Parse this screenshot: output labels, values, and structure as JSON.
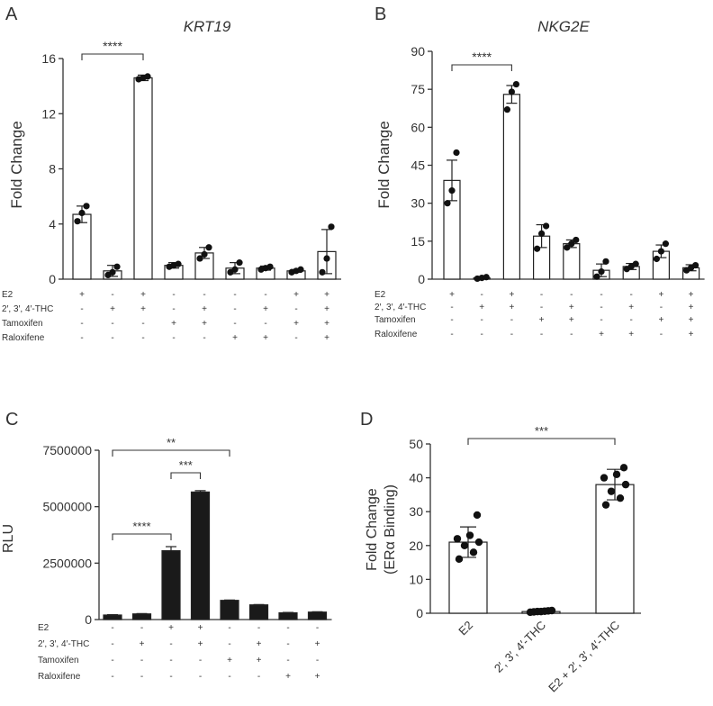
{
  "panels": {
    "A": {
      "letter": "A",
      "title": "KRT19"
    },
    "B": {
      "letter": "B",
      "title": "NKG2E"
    },
    "C": {
      "letter": "C"
    },
    "D": {
      "letter": "D"
    }
  },
  "conditions": {
    "labels": [
      "E2",
      "2′, 3′, 4′-THC",
      "Tamoxifen",
      "Raloxifene"
    ],
    "signs": [
      [
        "+",
        "-",
        "+",
        "-",
        "-",
        "-",
        "-",
        "+",
        "+"
      ],
      [
        "-",
        "+",
        "+",
        "-",
        "+",
        "-",
        "+",
        "-",
        "+"
      ],
      [
        "-",
        "-",
        "-",
        "+",
        "+",
        "-",
        "-",
        "+",
        "+"
      ],
      [
        "-",
        "-",
        "-",
        "-",
        "-",
        "+",
        "+",
        "-",
        "+"
      ]
    ]
  },
  "conditions_C": {
    "labels": [
      "E2",
      "2′, 3′, 4′-THC",
      "Tamoxifen",
      "Raloxifene"
    ],
    "signs": [
      [
        "-",
        "-",
        "+",
        "+",
        "-",
        "-",
        "-",
        "-"
      ],
      [
        "-",
        "+",
        "-",
        "+",
        "-",
        "+",
        "-",
        "+"
      ],
      [
        "-",
        "-",
        "-",
        "-",
        "+",
        "+",
        "-",
        "-"
      ],
      [
        "-",
        "-",
        "-",
        "-",
        "-",
        "-",
        "+",
        "+"
      ]
    ]
  },
  "chart_data": [
    {
      "panel": "A",
      "type": "bar",
      "title": "KRT19",
      "ylabel": "Fold Change",
      "ylim": [
        0,
        16
      ],
      "yticks": [
        "0",
        "4",
        "8",
        "12",
        "16"
      ],
      "values": [
        4.7,
        0.6,
        14.6,
        1.0,
        1.9,
        0.8,
        0.8,
        0.6,
        2.0
      ],
      "errors": [
        0.6,
        0.4,
        0.2,
        0.2,
        0.4,
        0.4,
        0.15,
        0.1,
        1.6
      ],
      "points": [
        [
          4.2,
          4.8,
          5.3
        ],
        [
          0.3,
          0.5,
          0.9
        ],
        [
          14.5,
          14.6,
          14.7
        ],
        [
          0.9,
          1.0,
          1.1
        ],
        [
          1.5,
          1.8,
          2.3
        ],
        [
          0.5,
          0.7,
          1.2
        ],
        [
          0.7,
          0.8,
          0.9
        ],
        [
          0.5,
          0.6,
          0.7
        ],
        [
          0.5,
          1.5,
          3.8
        ]
      ],
      "significance": [
        {
          "from": 0,
          "to": 2,
          "label": "****"
        }
      ]
    },
    {
      "panel": "B",
      "type": "bar",
      "title": "NKG2E",
      "ylabel": "Fold Change",
      "ylim": [
        0,
        90
      ],
      "yticks": [
        "0",
        "15",
        "30",
        "45",
        "60",
        "75",
        "90"
      ],
      "values": [
        39,
        0.5,
        73,
        17,
        14,
        3.5,
        5,
        11,
        4.5
      ],
      "errors": [
        8,
        0.4,
        3.5,
        4.5,
        1.5,
        2.5,
        1.2,
        2.5,
        1.2
      ],
      "points": [
        [
          30,
          35,
          50
        ],
        [
          0.2,
          0.5,
          0.8
        ],
        [
          67,
          74,
          77
        ],
        [
          12,
          18,
          21
        ],
        [
          12.5,
          14,
          15.5
        ],
        [
          1,
          3,
          7
        ],
        [
          4,
          5,
          6
        ],
        [
          8,
          11,
          14
        ],
        [
          3.5,
          4.5,
          5.5
        ]
      ],
      "significance": [
        {
          "from": 0,
          "to": 2,
          "label": "****"
        }
      ]
    },
    {
      "panel": "C",
      "type": "bar",
      "ylabel": "RLU",
      "ylim": [
        0,
        7500000
      ],
      "yticks": [
        "0",
        "2500000",
        "5000000",
        "7500000"
      ],
      "values": [
        200000,
        250000,
        3050000,
        5650000,
        850000,
        650000,
        300000,
        330000
      ],
      "errors": [
        15000,
        15000,
        180000,
        60000,
        15000,
        15000,
        15000,
        15000
      ],
      "significance": [
        {
          "from": 0,
          "to": 2,
          "label": "****"
        },
        {
          "from": 2,
          "to": 3,
          "label": "***"
        },
        {
          "from": 0,
          "to": 4,
          "label": "**"
        }
      ]
    },
    {
      "panel": "D",
      "type": "bar",
      "ylabel": "Fold Change",
      "ylabel2": "(ERα Binding)",
      "ylim": [
        0,
        50
      ],
      "yticks": [
        "0",
        "10",
        "20",
        "30",
        "40",
        "50"
      ],
      "categories": [
        "E2",
        "2′, 3′, 4′-THC",
        "E2 + 2′, 3′, 4′-THC"
      ],
      "values": [
        21,
        0.5,
        38
      ],
      "errors": [
        4.5,
        0.2,
        4.5
      ],
      "points": [
        [
          16,
          18,
          20,
          21,
          22,
          23,
          29
        ],
        [
          0.3,
          0.4,
          0.5,
          0.5,
          0.6,
          0.7,
          0.8
        ],
        [
          32,
          34,
          36,
          38,
          40,
          41,
          43
        ]
      ],
      "significance": [
        {
          "from": 0,
          "to": 2,
          "label": "***"
        }
      ]
    }
  ]
}
